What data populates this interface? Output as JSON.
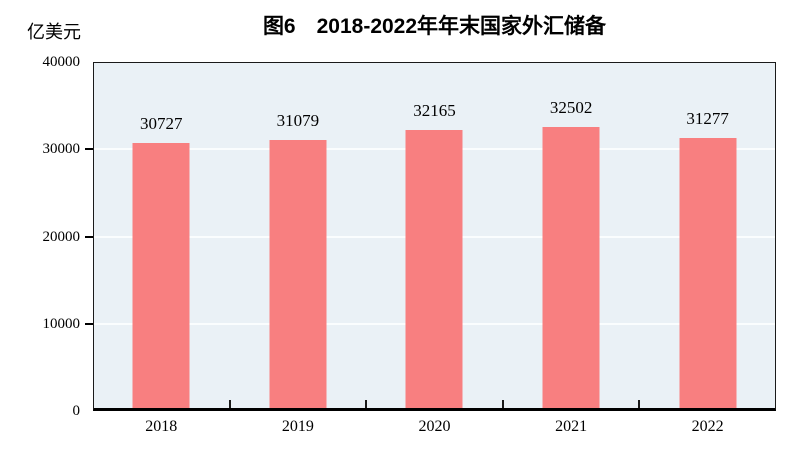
{
  "chart_data": {
    "type": "bar",
    "title": "图6　2018-2022年年末国家外汇储备",
    "unit": "亿美元",
    "categories": [
      "2018",
      "2019",
      "2020",
      "2021",
      "2022"
    ],
    "values": [
      30727,
      31079,
      32165,
      32502,
      31277
    ],
    "data_labels": [
      30727,
      31079,
      32165,
      32502,
      31277
    ],
    "xlabel": "",
    "ylabel": "亿美元",
    "ylim": [
      0,
      40000
    ],
    "yticks": [
      0,
      10000,
      20000,
      30000,
      40000
    ],
    "grid": "horizontal",
    "legend": "none",
    "colors": {
      "bar": "#f87f80",
      "plot_background": "#eaf1f6",
      "gridline": "#fafdfe",
      "axis": "#1a1a1a",
      "text": "#000000"
    }
  }
}
